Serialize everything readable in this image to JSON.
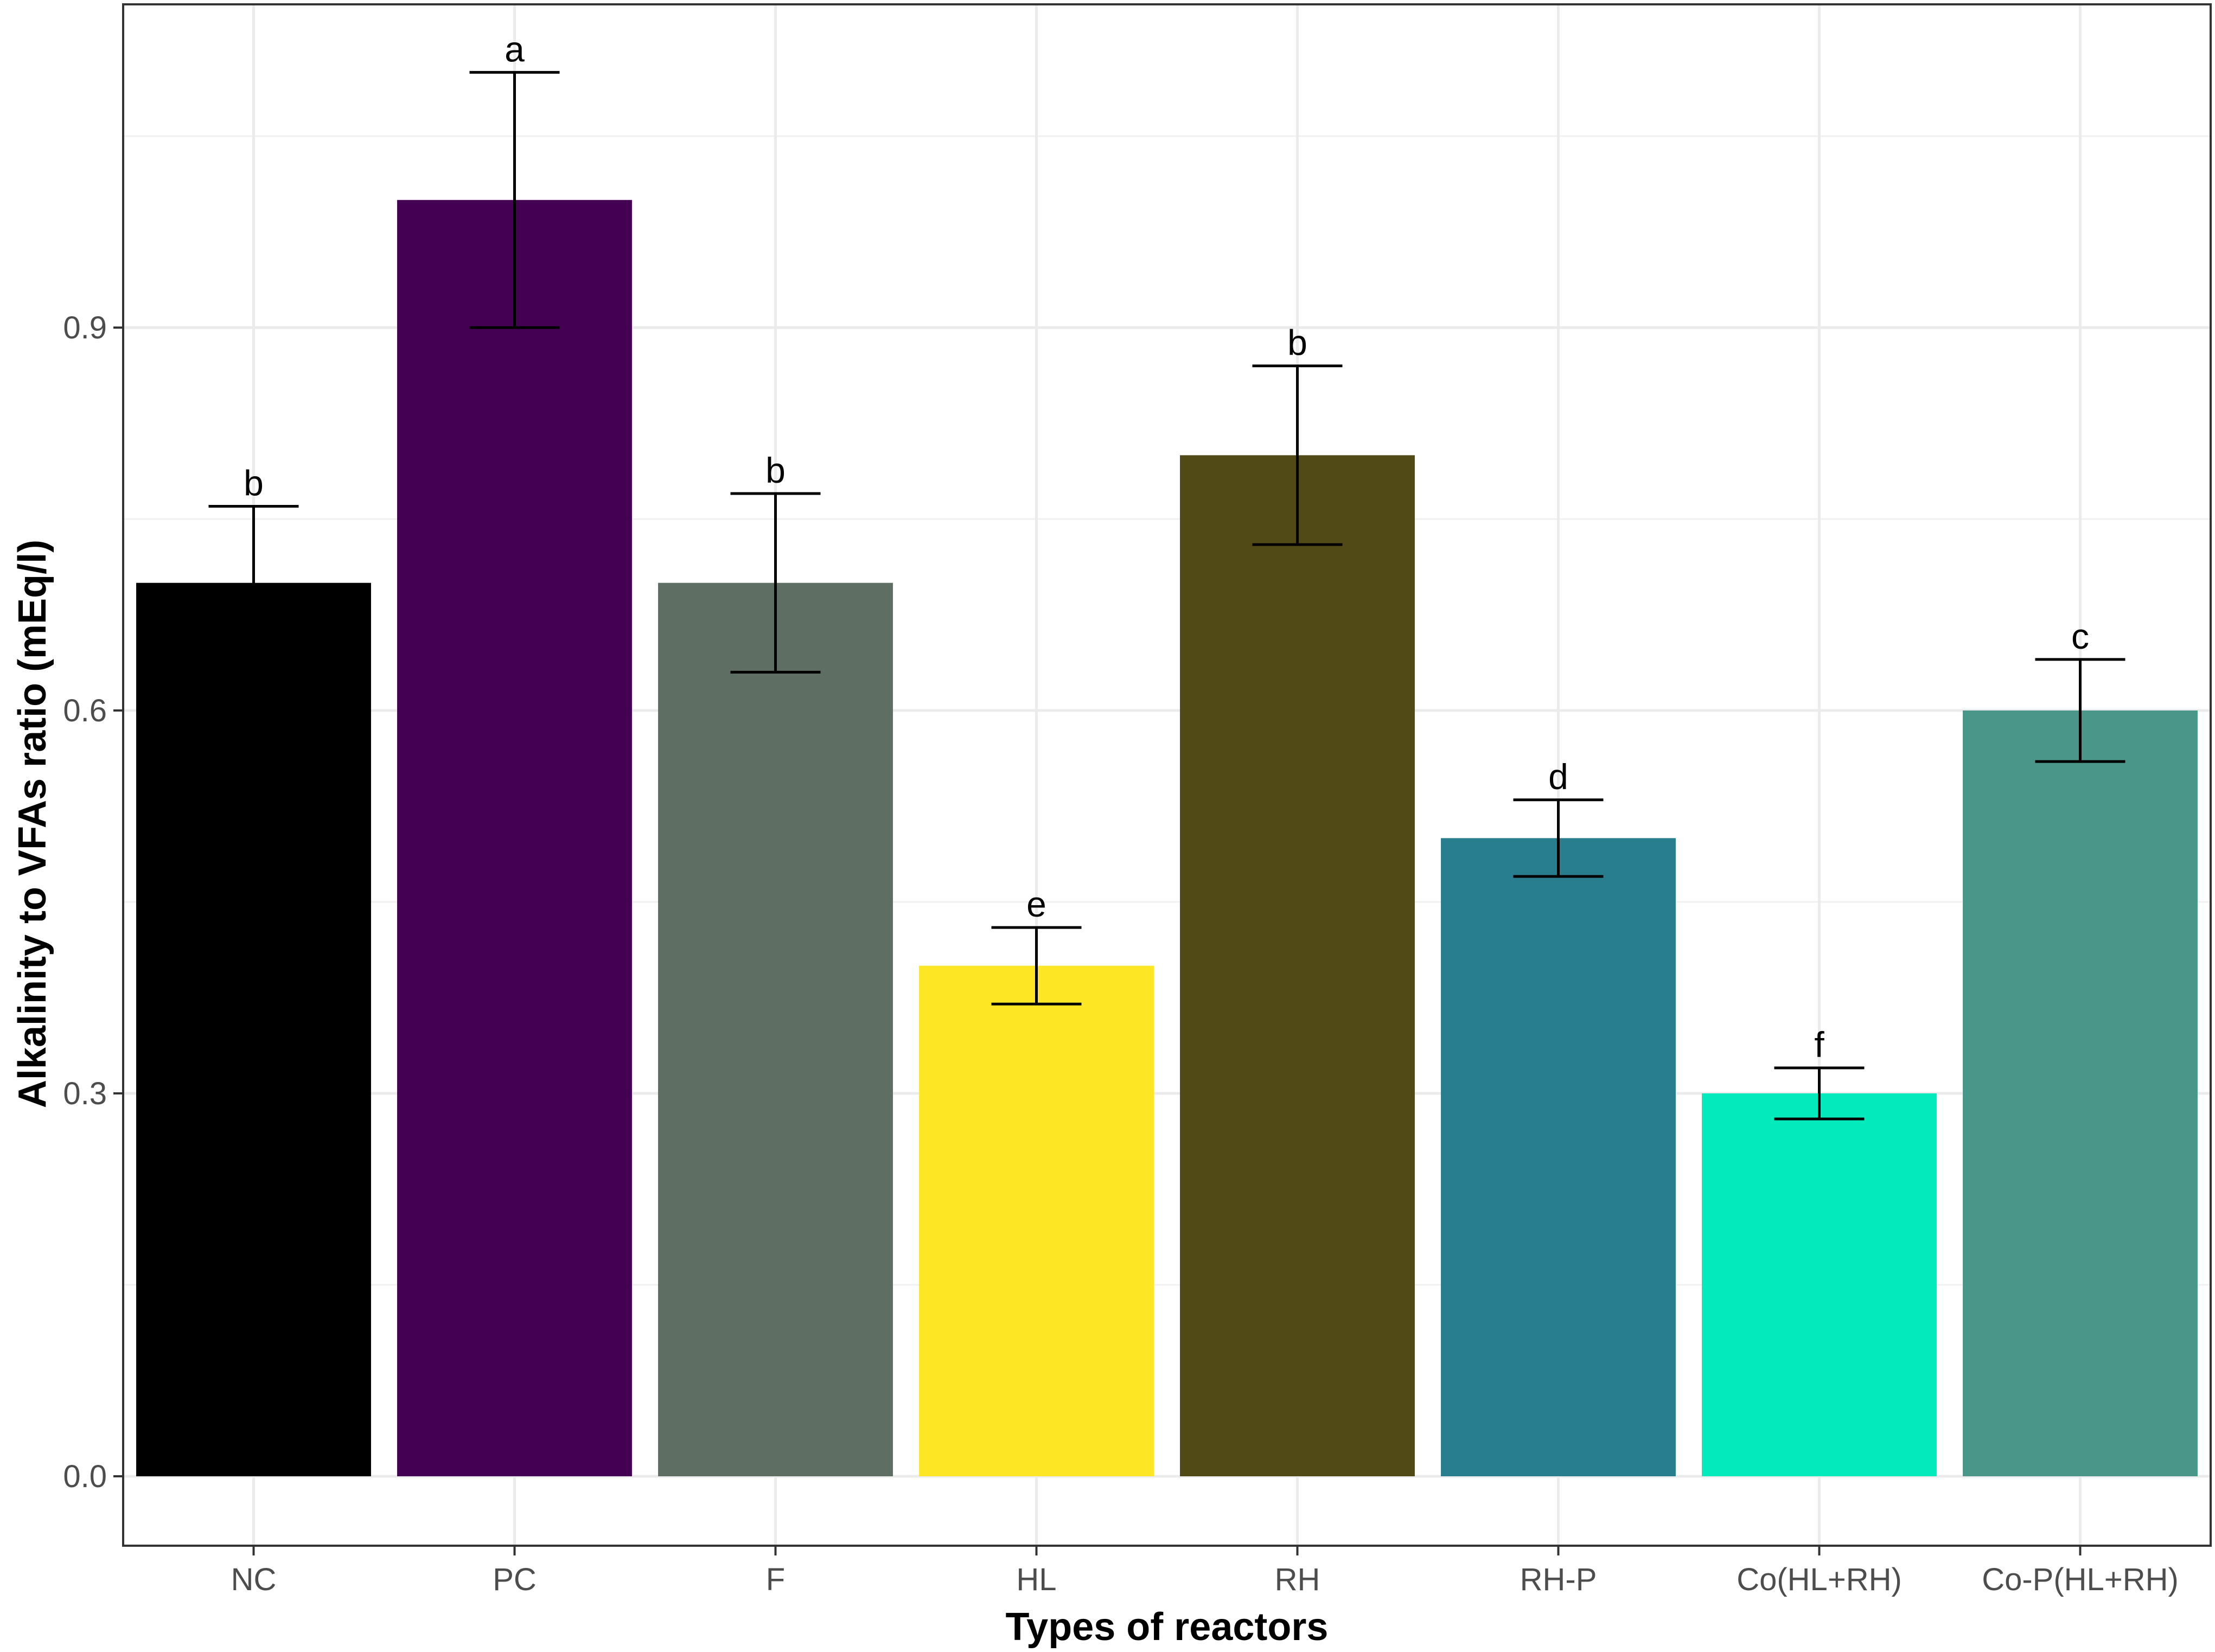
{
  "chart_data": {
    "type": "bar",
    "title": "",
    "xlabel": "Types of reactors",
    "ylabel": "Alkalinity to VFAs ratio (mEq/l)",
    "categories": [
      "NC",
      "PC",
      "F",
      "HL",
      "RH",
      "RH-P",
      "Co(HL+RH)",
      "Co-P(HL+RH)"
    ],
    "values": [
      0.7,
      1.0,
      0.7,
      0.4,
      0.8,
      0.5,
      0.3,
      0.6
    ],
    "error_low": [
      0.06,
      0.1,
      0.07,
      0.03,
      0.07,
      0.03,
      0.02,
      0.04
    ],
    "error_high": [
      0.06,
      0.1,
      0.07,
      0.03,
      0.07,
      0.03,
      0.02,
      0.04
    ],
    "significance_letters": [
      "b",
      "a",
      "b",
      "e",
      "b",
      "d",
      "f",
      "c"
    ],
    "colors": [
      "#000000",
      "#440154",
      "#5f6e63",
      "#fde725",
      "#524a16",
      "#287d8e",
      "#03ebbc",
      "#4a9688"
    ],
    "ylim": [
      -0.05,
      1.155
    ],
    "yticks": [
      0.0,
      0.3,
      0.6,
      0.9
    ],
    "ytick_labels": [
      "0.0",
      "0.3",
      "0.6",
      "0.9"
    ],
    "grid": true,
    "legend": "none"
  }
}
